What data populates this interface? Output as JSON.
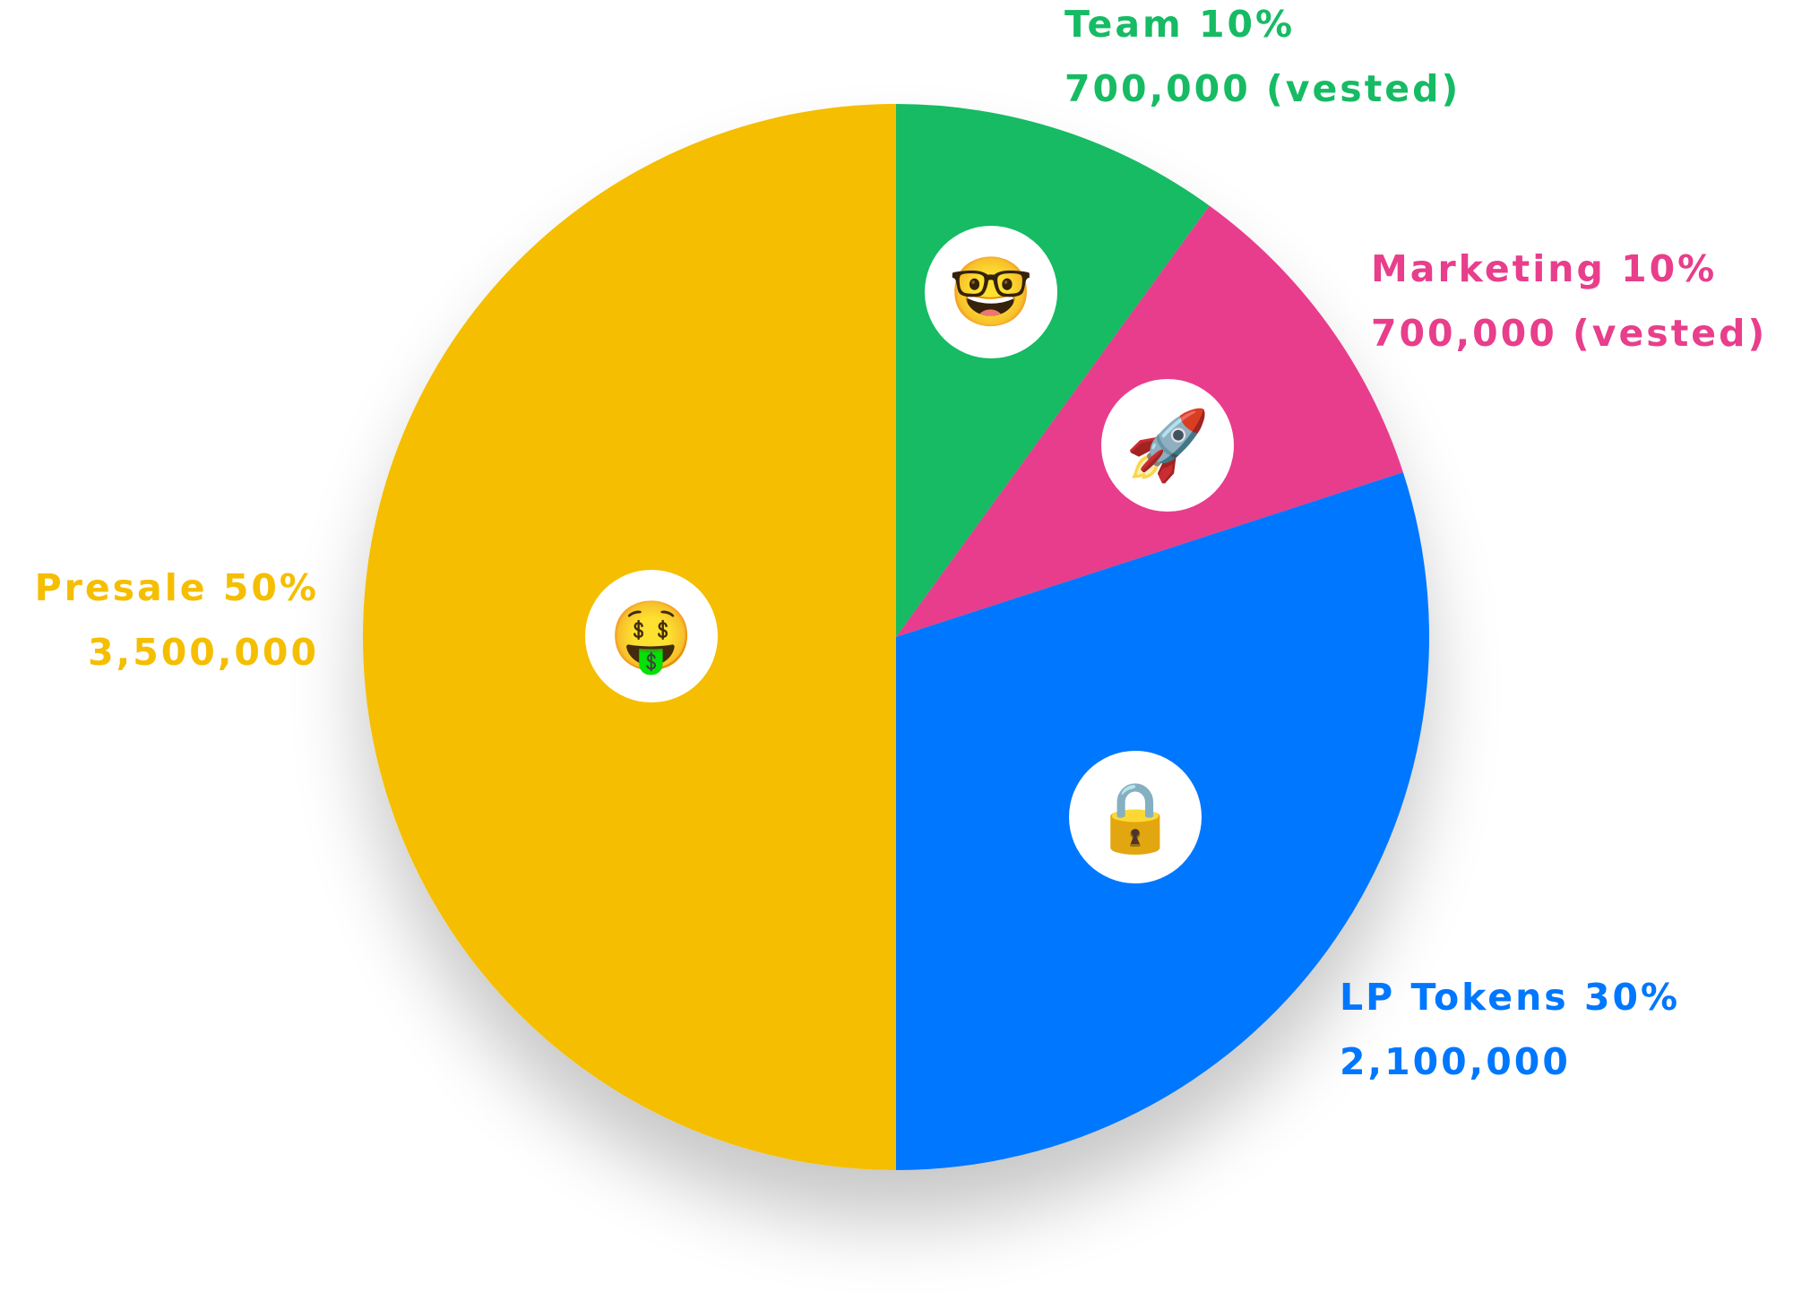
{
  "chart_data": {
    "type": "pie",
    "total": 7000000,
    "slices": [
      {
        "name": "Team",
        "percent": 10,
        "value": 700000,
        "amount_label": "700,000 (vested)",
        "label": "Team 10%",
        "color": "#16BB64",
        "emoji": "🤓",
        "icon": "nerd-face-icon"
      },
      {
        "name": "Marketing",
        "percent": 10,
        "value": 700000,
        "amount_label": "700,000 (vested)",
        "label": "Marketing 10%",
        "color": "#E83E8C",
        "emoji": "🚀",
        "icon": "rocket-icon"
      },
      {
        "name": "LP Tokens",
        "percent": 30,
        "value": 2100000,
        "amount_label": "2,100,000",
        "label": "LP Tokens 30%",
        "color": "#0077FF",
        "emoji": "🔒",
        "icon": "lock-icon"
      },
      {
        "name": "Presale",
        "percent": 50,
        "value": 3500000,
        "amount_label": "3,500,000",
        "label": "Presale 50%",
        "color": "#F5BE00",
        "emoji": "🤑",
        "icon": "money-mouth-face-icon"
      }
    ]
  }
}
